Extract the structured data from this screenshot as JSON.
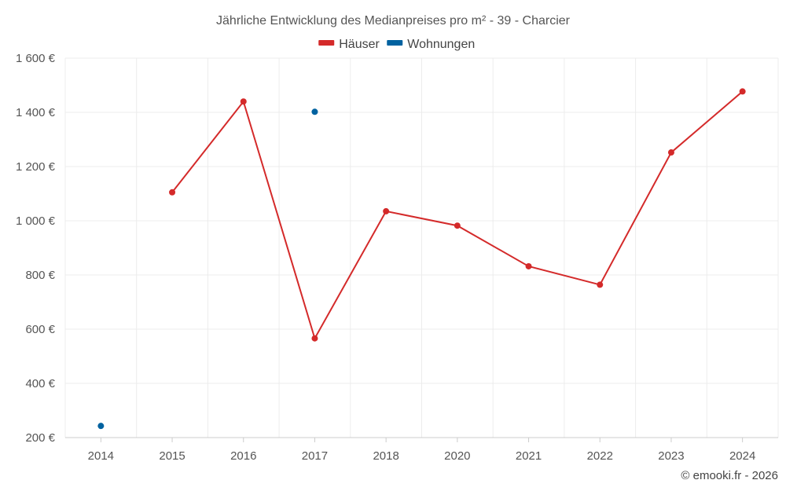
{
  "chart_data": {
    "type": "line",
    "title": "Jährliche Entwicklung des Medianpreises pro m² - 39 - Charcier",
    "categories": [
      "2014",
      "2015",
      "2016",
      "2017",
      "2018",
      "2020",
      "2021",
      "2022",
      "2023",
      "2024"
    ],
    "series": [
      {
        "name": "Häuser",
        "color": "#d42a2a",
        "values": [
          null,
          1105,
          1440,
          566,
          1035,
          982,
          832,
          764,
          1252,
          1477
        ]
      },
      {
        "name": "Wohnungen",
        "color": "#0062a0",
        "values": [
          243,
          null,
          null,
          1402,
          null,
          null,
          null,
          null,
          null,
          null
        ]
      }
    ],
    "ylim": [
      200,
      1600
    ],
    "yticks": [
      200,
      400,
      600,
      800,
      1000,
      1200,
      1400,
      1600
    ],
    "ytick_labels": [
      "200 €",
      "400 €",
      "600 €",
      "800 €",
      "1 000 €",
      "1 200 €",
      "1 400 €",
      "1 600 €"
    ],
    "xlabel": "",
    "ylabel": "",
    "grid": true,
    "legend_position": "top-center"
  },
  "credit": "© emooki.fr - 2026"
}
